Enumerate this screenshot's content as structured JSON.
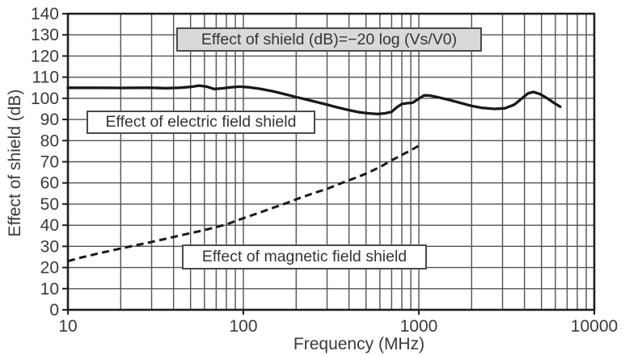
{
  "chart_data": {
    "type": "line",
    "title": "",
    "xlabel": "Frequency (MHz)",
    "ylabel": "Effect of shield (dB)",
    "x_scale": "log",
    "xlim": [
      10,
      10000
    ],
    "ylim": [
      0,
      140
    ],
    "grid": true,
    "legend_position": "none",
    "x_tick_values": [
      10,
      100,
      1000,
      10000
    ],
    "y_tick_values": [
      0,
      10,
      20,
      30,
      40,
      50,
      60,
      70,
      80,
      90,
      100,
      110,
      120,
      130,
      140
    ],
    "annotations": {
      "formula": "Effect of shield (dB)=−20 log (Vs/V0)",
      "electric_label": "Effect of electric field shield",
      "magnetic_label": "Effect of magnetic field shield"
    },
    "colors": {
      "curve": "#191919",
      "grid": "#535353",
      "axis": "#1f1f1f",
      "text": "#3a3a3a",
      "formula_box_fill": "#d9d9d9",
      "label_box_fill": "#ffffff",
      "box_border": "#4a4a4a"
    },
    "series": [
      {
        "name": "Effect of electric field shield",
        "line_style": "solid",
        "points": [
          [
            10,
            105
          ],
          [
            15,
            105
          ],
          [
            20,
            104.9
          ],
          [
            25,
            105
          ],
          [
            30,
            105
          ],
          [
            36,
            104.8
          ],
          [
            43,
            105
          ],
          [
            50,
            105.4
          ],
          [
            56,
            106
          ],
          [
            62,
            105.5
          ],
          [
            68,
            104.4
          ],
          [
            76,
            104.7
          ],
          [
            85,
            105.2
          ],
          [
            95,
            105.5
          ],
          [
            108,
            105.2
          ],
          [
            125,
            104.5
          ],
          [
            150,
            103.2
          ],
          [
            175,
            101.8
          ],
          [
            200,
            100.6
          ],
          [
            240,
            99
          ],
          [
            290,
            97.3
          ],
          [
            340,
            95.8
          ],
          [
            400,
            94.4
          ],
          [
            460,
            93.4
          ],
          [
            520,
            92.9
          ],
          [
            580,
            92.6
          ],
          [
            640,
            92.9
          ],
          [
            700,
            93.6
          ],
          [
            750,
            95.8
          ],
          [
            800,
            97.3
          ],
          [
            860,
            97.7
          ],
          [
            920,
            97.9
          ],
          [
            1000,
            99.8
          ],
          [
            1070,
            101.4
          ],
          [
            1150,
            101.3
          ],
          [
            1300,
            100.4
          ],
          [
            1500,
            99.2
          ],
          [
            1750,
            97.7
          ],
          [
            2000,
            96.4
          ],
          [
            2300,
            95.5
          ],
          [
            2700,
            95
          ],
          [
            3100,
            95.3
          ],
          [
            3500,
            97
          ],
          [
            3900,
            100.2
          ],
          [
            4200,
            102.4
          ],
          [
            4500,
            103
          ],
          [
            4900,
            102
          ],
          [
            5400,
            100
          ],
          [
            5900,
            97.8
          ],
          [
            6400,
            96
          ]
        ]
      },
      {
        "name": "Effect of magnetic field shield",
        "line_style": "dashed",
        "points": [
          [
            10,
            23
          ],
          [
            12,
            24.8
          ],
          [
            15,
            26.7
          ],
          [
            20,
            29
          ],
          [
            25,
            30.7
          ],
          [
            30,
            32.1
          ],
          [
            37,
            33.8
          ],
          [
            45,
            35.4
          ],
          [
            55,
            37
          ],
          [
            67,
            38.7
          ],
          [
            80,
            40.4
          ],
          [
            100,
            43.3
          ],
          [
            120,
            45.6
          ],
          [
            145,
            48
          ],
          [
            175,
            50.4
          ],
          [
            210,
            52.9
          ],
          [
            250,
            55.1
          ],
          [
            300,
            57.2
          ],
          [
            360,
            59.8
          ],
          [
            430,
            62.2
          ],
          [
            500,
            64.4
          ],
          [
            600,
            67.5
          ],
          [
            700,
            70.7
          ],
          [
            800,
            73.2
          ],
          [
            900,
            75.4
          ],
          [
            1000,
            77.6
          ]
        ]
      }
    ]
  }
}
